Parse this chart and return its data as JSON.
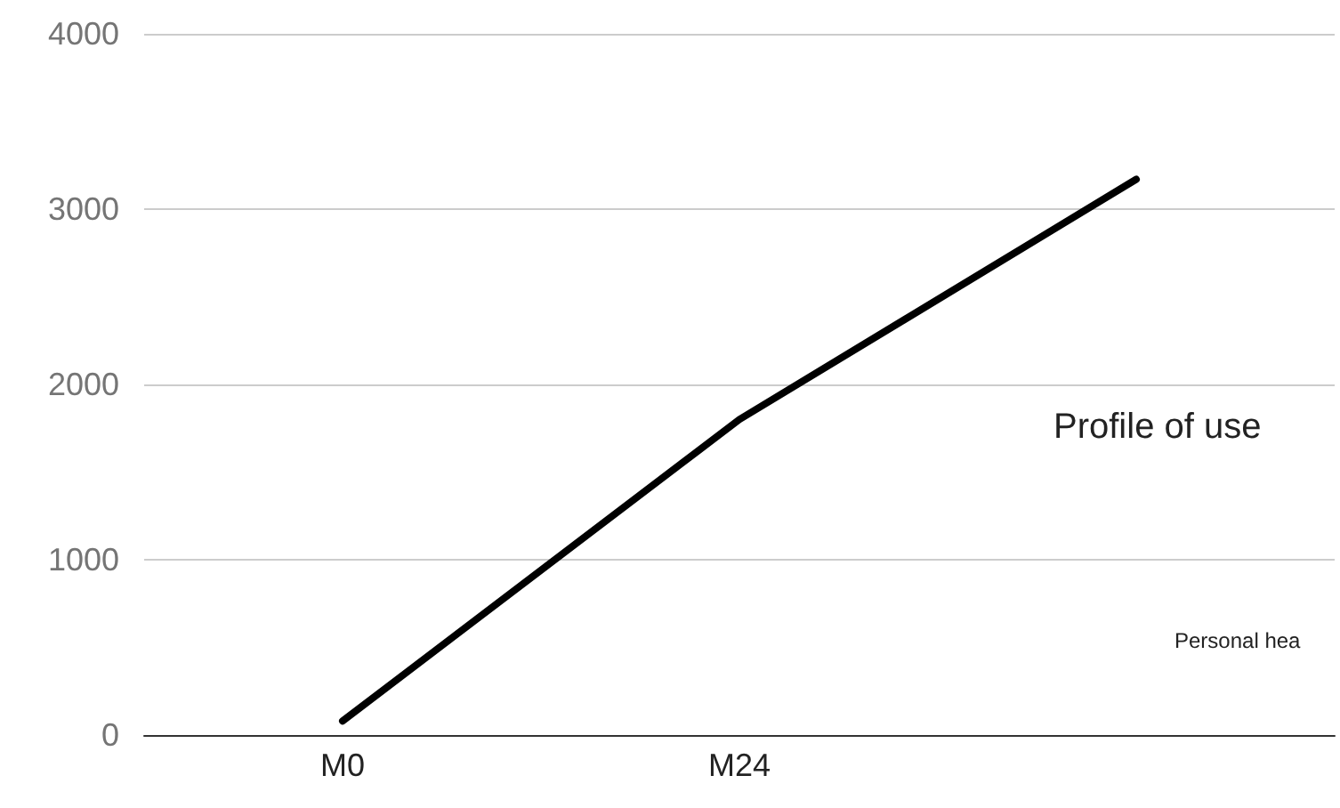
{
  "chart_data": {
    "type": "line",
    "categories": [
      "M0",
      "M24",
      null
    ],
    "series": [
      {
        "color": "#000000",
        "values": [
          80,
          1800,
          3170
        ]
      }
    ],
    "ylim": [
      0,
      4000
    ],
    "yticks": [
      0,
      1000,
      2000,
      3000,
      4000
    ],
    "grid": "y",
    "marker": "none",
    "line_style": "solid",
    "annotations": [
      "Profile of use",
      "Personal hea"
    ]
  }
}
